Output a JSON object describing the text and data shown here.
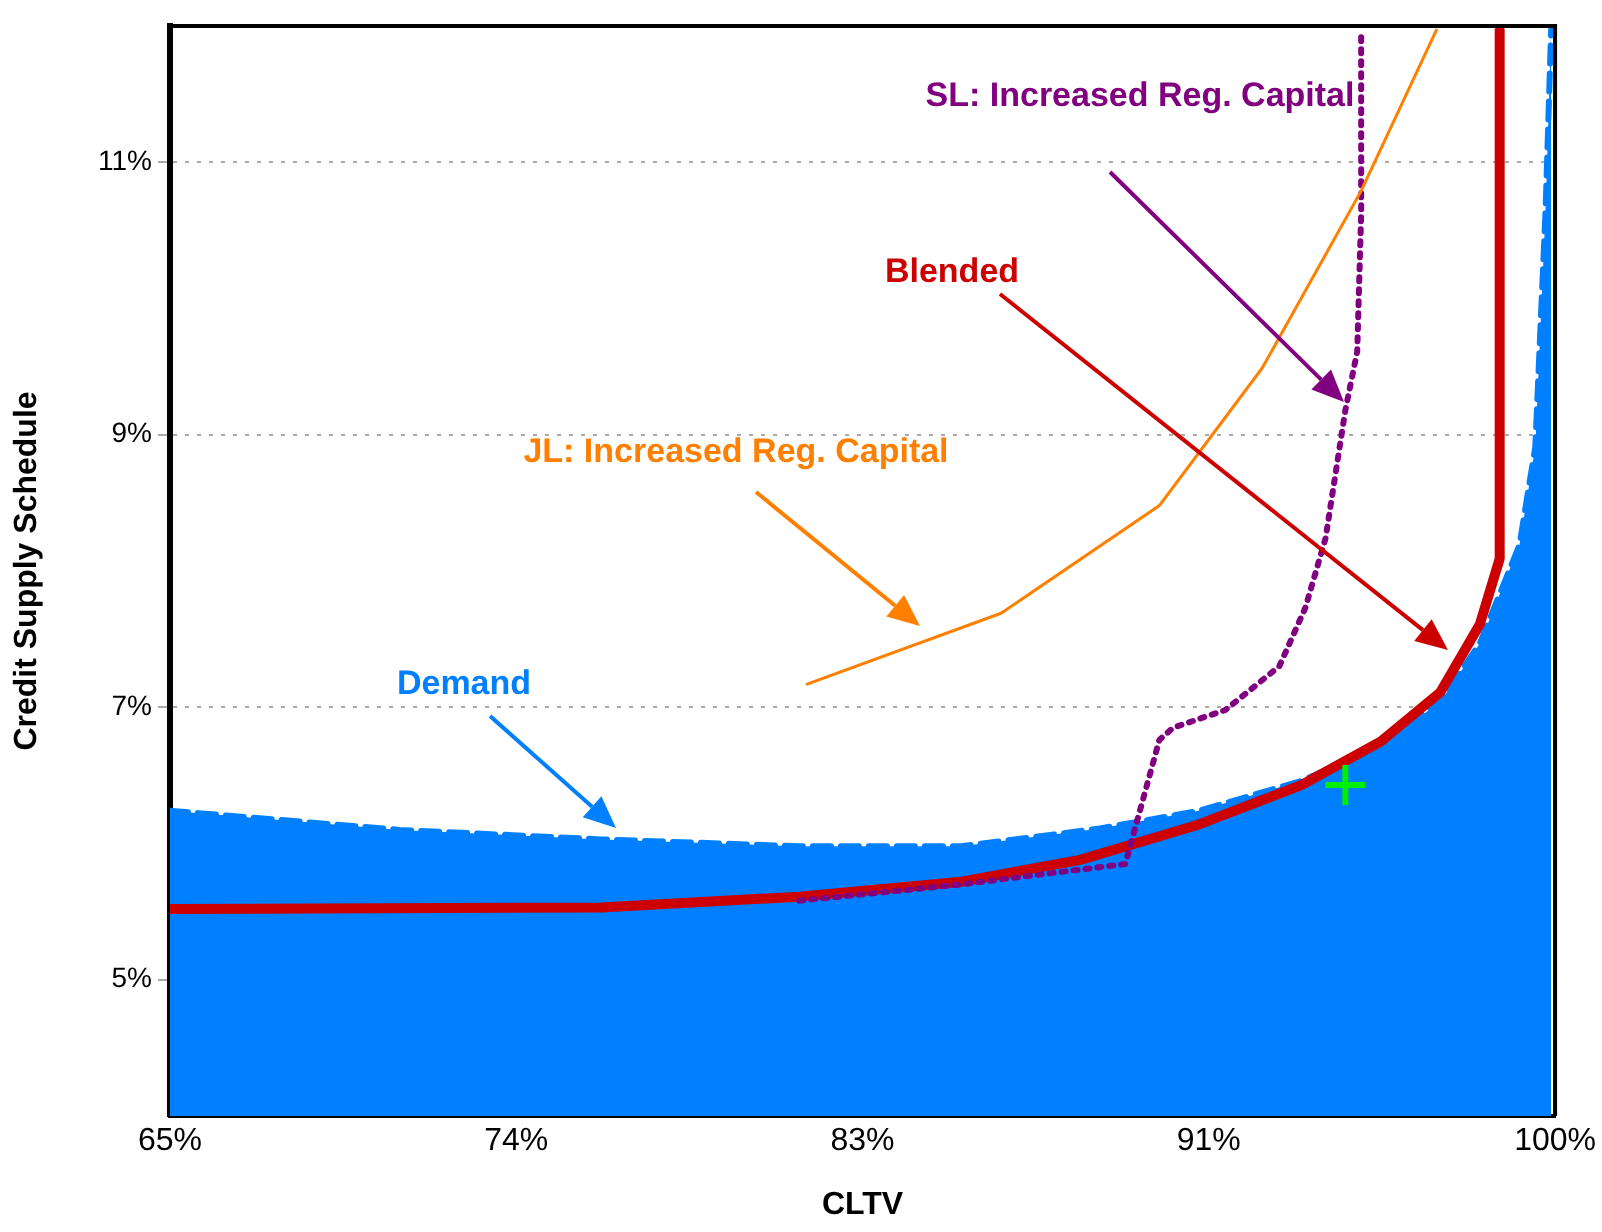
{
  "chart_data": {
    "type": "line",
    "xlabel": "CLTV",
    "ylabel": "Credit Supply Schedule",
    "xlim": [
      65,
      100
    ],
    "ylim": [
      4,
      12
    ],
    "xticks": [
      {
        "value": 65,
        "label": "65%"
      },
      {
        "value": 73.75,
        "label": "74%"
      },
      {
        "value": 82.5,
        "label": "83%"
      },
      {
        "value": 91.25,
        "label": "91%"
      },
      {
        "value": 100,
        "label": "100%"
      }
    ],
    "yticks": [
      {
        "value": 5,
        "label": "5%"
      },
      {
        "value": 7,
        "label": "7%"
      },
      {
        "value": 9,
        "label": "9%"
      },
      {
        "value": 11,
        "label": "11%"
      }
    ],
    "grid": "y",
    "legend": false,
    "marker": "none",
    "series": [
      {
        "name": "Demand",
        "type": "area",
        "color": "#0080ff",
        "line_style": "dashed",
        "x": [
          65,
          70.8,
          75.9,
          80.9,
          85,
          88.5,
          91,
          93.6,
          95.6,
          97.1,
          98.1,
          99.1,
          99.5,
          99.76,
          99.9
        ],
        "values": [
          6.24,
          6.1,
          6.03,
          5.98,
          5.98,
          6.11,
          6.24,
          6.46,
          6.72,
          7.04,
          7.47,
          8.19,
          8.91,
          10.65,
          11.97
        ]
      },
      {
        "name": "Blended",
        "type": "line",
        "color": "#cc0000",
        "line_style": "solid",
        "x": [
          65,
          75.9,
          80.9,
          85,
          88,
          91,
          93.6,
          95.6,
          97.1,
          98.1,
          98.6,
          98.6
        ],
        "values": [
          5.52,
          5.53,
          5.61,
          5.72,
          5.88,
          6.14,
          6.43,
          6.75,
          7.11,
          7.61,
          8.09,
          11.97
        ]
      },
      {
        "name": "SL: Increased Reg. Capital",
        "type": "line",
        "color": "#800080",
        "line_style": "dotted",
        "x": [
          80.9,
          85,
          89.14,
          90,
          90.35,
          91.67,
          93.03,
          93.69,
          94.2,
          94.7,
          95,
          95.1,
          95.1
        ],
        "values": [
          5.58,
          5.7,
          5.85,
          6.76,
          6.85,
          6.98,
          7.3,
          7.73,
          8.24,
          9.18,
          9.61,
          10.62,
          11.95
        ]
      },
      {
        "name": "JL: Increased Reg. Capital",
        "type": "line",
        "color": "#ff8000",
        "line_style": "solid",
        "x": [
          81.1,
          86,
          90,
          92.6,
          95.1,
          97
        ],
        "values": [
          7.17,
          7.69,
          8.48,
          9.49,
          10.79,
          11.97
        ]
      },
      {
        "type": "scatter",
        "color": "#00ee00",
        "marker": "cross",
        "x": [
          94.7
        ],
        "values": [
          6.43
        ]
      }
    ]
  }
}
